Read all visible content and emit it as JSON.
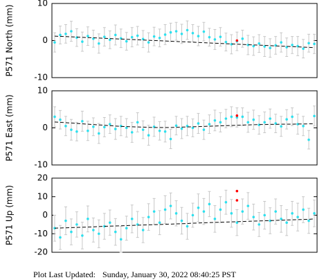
{
  "chart_data": [
    {
      "type": "scatter",
      "ylabel": "P571 North (mm)",
      "ylim": [
        -10,
        10
      ],
      "yticks": [
        -10,
        0,
        10
      ],
      "series": [
        {
          "color": "#2ee0ee",
          "values": [
            -0.5,
            1.5,
            1.8,
            2.5,
            0.8,
            -0.3,
            1.2,
            0.5,
            -0.8,
            1.0,
            0.2,
            1.5,
            0.6,
            -0.2,
            0.9,
            1.3,
            0.4,
            -0.5,
            1.1,
            0.7,
            1.6,
            2.2,
            2.5,
            1.8,
            2.8,
            2.0,
            1.2,
            2.4,
            0.9,
            0.3,
            1.0,
            -0.4,
            -1.0,
            -0.2,
            0.5,
            -1.2,
            -1.5,
            -0.8,
            -1.6,
            -2.0,
            -1.3,
            -0.5,
            -1.8,
            -1.2,
            -1.5,
            -2.2,
            -0.7,
            -0.9
          ],
          "errors": [
            2.6,
            2.4,
            2.5,
            2.7,
            2.4,
            2.6,
            2.5,
            2.3,
            2.6,
            2.5,
            2.4,
            2.7,
            2.5,
            2.4,
            2.6,
            2.5,
            2.3,
            2.6,
            2.5,
            2.4,
            2.7,
            2.5,
            2.4,
            2.6,
            2.5,
            2.3,
            2.6,
            2.5,
            2.4,
            2.7,
            2.5,
            2.4,
            2.6,
            2.5,
            2.3,
            2.6,
            2.5,
            2.4,
            2.7,
            2.5,
            2.4,
            2.6,
            2.5,
            2.3,
            2.6,
            2.5,
            2.4,
            2.6
          ]
        },
        {
          "color": "#000000",
          "style": "dashed",
          "values": [
            1.2,
            1.13,
            1.07,
            1.0,
            0.94,
            0.87,
            0.8,
            0.74,
            0.67,
            0.61,
            0.54,
            0.47,
            0.41,
            0.34,
            0.28,
            0.21,
            0.14,
            0.08,
            0.01,
            -0.05,
            -0.12,
            -0.19,
            -0.25,
            -0.32,
            -0.38,
            -0.45,
            -0.52,
            -0.58,
            -0.65,
            -0.71,
            -0.78,
            -0.85,
            -0.91,
            -0.98,
            -1.04,
            -1.11,
            -1.18,
            -1.24,
            -1.31,
            -1.37,
            -1.44,
            -1.51,
            -1.57,
            -1.64,
            -1.7,
            -1.77,
            -1.84,
            -1.9
          ]
        },
        {
          "color": "#ff0000",
          "values": [
            null,
            null,
            null,
            null,
            null,
            null,
            null,
            null,
            null,
            null,
            null,
            null,
            null,
            null,
            null,
            null,
            null,
            null,
            null,
            null,
            null,
            null,
            null,
            null,
            null,
            null,
            null,
            null,
            null,
            null,
            null,
            null,
            null,
            0.0,
            null,
            null,
            null,
            null,
            null,
            null,
            null,
            null,
            null,
            null,
            null,
            null,
            null,
            null
          ]
        }
      ]
    },
    {
      "type": "scatter",
      "ylabel": "P571 East (mm)",
      "ylim": [
        -10,
        10
      ],
      "yticks": [
        -10,
        0,
        10
      ],
      "series": [
        {
          "color": "#2ee0ee",
          "values": [
            3.0,
            2.2,
            0.5,
            -0.5,
            -1.0,
            1.8,
            -0.8,
            0.3,
            -1.5,
            0.2,
            1.0,
            -0.3,
            0.5,
            0.0,
            -1.2,
            1.5,
            -0.5,
            -2.0,
            0.3,
            -0.8,
            -1.0,
            -3.0,
            0.6,
            -0.2,
            0.5,
            0.0,
            1.2,
            -0.5,
            1.0,
            2.0,
            1.5,
            2.5,
            3.0,
            2.8,
            3.0,
            1.5,
            2.2,
            0.8,
            1.5,
            2.5,
            1.2,
            0.4,
            2.3,
            3.0,
            1.0,
            0.5,
            -3.2,
            3.2
          ],
          "errors": [
            2.7,
            2.5,
            2.6,
            2.8,
            2.5,
            2.7,
            2.6,
            2.4,
            2.7,
            2.6,
            2.5,
            2.8,
            2.6,
            2.5,
            2.7,
            2.6,
            2.4,
            2.7,
            2.6,
            2.5,
            2.8,
            2.6,
            2.5,
            2.7,
            2.6,
            2.4,
            2.7,
            2.6,
            2.5,
            2.8,
            2.6,
            2.5,
            2.7,
            2.6,
            2.4,
            2.7,
            2.6,
            2.5,
            2.8,
            2.6,
            2.5,
            2.7,
            2.6,
            2.4,
            2.7,
            2.6,
            2.5,
            2.7
          ]
        },
        {
          "color": "#000000",
          "style": "dashed",
          "values": [
            1.6,
            1.5,
            1.4,
            1.3,
            1.2,
            1.1,
            1.0,
            0.9,
            0.8,
            0.7,
            0.6,
            0.5,
            0.4,
            0.35,
            0.3,
            0.25,
            0.2,
            0.15,
            0.1,
            0.1,
            0.1,
            0.1,
            0.15,
            0.2,
            0.25,
            0.3,
            0.35,
            0.4,
            0.45,
            0.5,
            0.55,
            0.6,
            0.65,
            0.7,
            0.75,
            0.8,
            0.85,
            0.9,
            0.9,
            0.95,
            0.95,
            1.0,
            1.0,
            1.0,
            1.05,
            1.05,
            1.1,
            1.1
          ]
        },
        {
          "color": "#ff0000",
          "values": [
            null,
            null,
            null,
            null,
            null,
            null,
            null,
            null,
            null,
            null,
            null,
            null,
            null,
            null,
            null,
            null,
            null,
            null,
            null,
            null,
            null,
            null,
            null,
            null,
            null,
            null,
            null,
            null,
            null,
            null,
            null,
            null,
            null,
            3.3,
            null,
            null,
            null,
            null,
            null,
            null,
            null,
            null,
            null,
            null,
            null,
            null,
            null,
            null
          ]
        }
      ]
    },
    {
      "type": "scatter",
      "ylabel": "P571 Up (mm)",
      "ylim": [
        -20,
        20
      ],
      "yticks": [
        -20,
        -10,
        0,
        10,
        20
      ],
      "series": [
        {
          "color": "#2ee0ee",
          "values": [
            -7,
            -12,
            -3,
            -9,
            -5,
            -11,
            -2,
            -8,
            -10,
            -6,
            -4,
            -9,
            -13,
            -7,
            -2,
            -5,
            -8,
            -1,
            2,
            -4,
            3,
            5,
            1,
            -3,
            -6,
            0,
            4,
            2,
            6,
            -2,
            3,
            7,
            1,
            -4,
            2,
            5,
            -1,
            -5,
            0,
            -3,
            2,
            -2,
            -4,
            1,
            -1,
            3,
            -3,
            1
          ],
          "errors": [
            7,
            6.5,
            7.5,
            7,
            6.8,
            7.2,
            7,
            6.5,
            7.5,
            7,
            6.8,
            7.2,
            7,
            6.5,
            7.5,
            7,
            6.8,
            7.2,
            7,
            6.5,
            7.5,
            7,
            6.8,
            7.2,
            7,
            6.5,
            7.5,
            7,
            6.8,
            7.2,
            7,
            6.5,
            7.5,
            7,
            6.8,
            7.2,
            7,
            6.5,
            7.5,
            7,
            6.8,
            7.2,
            7,
            6.5,
            7.5,
            7,
            6.8,
            7.2
          ]
        },
        {
          "color": "#000000",
          "style": "dashed",
          "values": [
            -7,
            -6.9,
            -6.8,
            -6.7,
            -6.6,
            -6.5,
            -6.4,
            -6.3,
            -6.1,
            -6.0,
            -5.9,
            -5.8,
            -5.7,
            -5.6,
            -5.5,
            -5.4,
            -5.3,
            -5.2,
            -5.1,
            -5.0,
            -4.9,
            -4.8,
            -4.7,
            -4.6,
            -4.5,
            -4.3,
            -4.2,
            -4.1,
            -4.0,
            -3.9,
            -3.8,
            -3.7,
            -3.6,
            -3.5,
            -3.4,
            -3.3,
            -3.2,
            -3.1,
            -3.0,
            -2.9,
            -2.8,
            -2.7,
            -2.6,
            -2.5,
            -2.4,
            -2.3,
            -2.2,
            -2.0
          ]
        },
        {
          "color": "#ff0000",
          "values": [
            null,
            null,
            null,
            null,
            null,
            null,
            null,
            null,
            null,
            null,
            null,
            null,
            null,
            null,
            null,
            null,
            null,
            null,
            null,
            null,
            null,
            null,
            null,
            null,
            null,
            null,
            null,
            null,
            null,
            null,
            null,
            null,
            null,
            13,
            null,
            null,
            null,
            null,
            null,
            null,
            null,
            null,
            null,
            null,
            null,
            null,
            null,
            null
          ]
        },
        {
          "color": "#ff0000",
          "values": [
            null,
            null,
            null,
            null,
            null,
            null,
            null,
            null,
            null,
            null,
            null,
            null,
            null,
            null,
            null,
            null,
            null,
            null,
            null,
            null,
            null,
            null,
            null,
            null,
            null,
            null,
            null,
            null,
            null,
            null,
            null,
            null,
            null,
            8,
            null,
            null,
            null,
            null,
            null,
            null,
            null,
            null,
            null,
            null,
            null,
            null,
            null,
            null
          ]
        }
      ]
    }
  ],
  "footer": {
    "label": "Plot Last Updated:",
    "date": "Sunday, January 30, 2022 08:40:25 PST"
  }
}
